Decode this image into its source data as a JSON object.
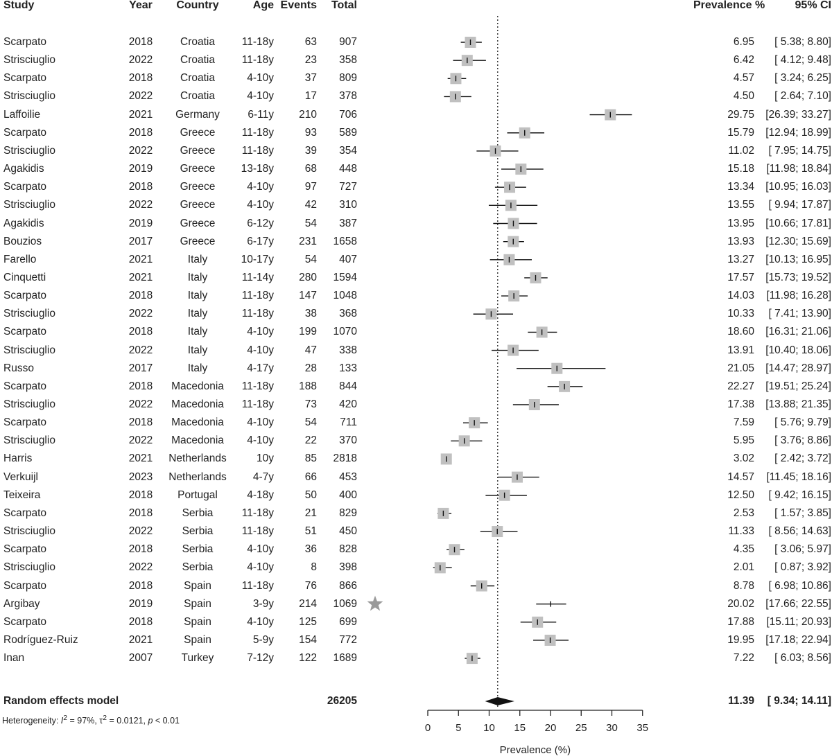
{
  "columns": {
    "study": "Study",
    "year": "Year",
    "country": "Country",
    "age": "Age",
    "events": "Events",
    "total": "Total",
    "prevalence": "Prevalence %",
    "ci": "95% CI"
  },
  "chart_data": {
    "type": "forest",
    "xlabel": "Prevalence (%)",
    "xlim": [
      0,
      35
    ],
    "ticks": [
      0,
      5,
      10,
      15,
      20,
      25,
      30,
      35
    ],
    "reference_line": 11.39,
    "rows": [
      {
        "study": "Scarpato",
        "year": "2018",
        "country": "Croatia",
        "age": "11-18y",
        "events": "63",
        "total": "907",
        "prev": 6.95,
        "lo": 5.38,
        "hi": 8.8,
        "prev_text": "6.95",
        "ci_text": "[ 5.38;  8.80]"
      },
      {
        "study": "Strisciuglio",
        "year": "2022",
        "country": "Croatia",
        "age": "11-18y",
        "events": "23",
        "total": "358",
        "prev": 6.42,
        "lo": 4.12,
        "hi": 9.48,
        "prev_text": "6.42",
        "ci_text": "[ 4.12;  9.48]"
      },
      {
        "study": "Scarpato",
        "year": "2018",
        "country": "Croatia",
        "age": "4-10y",
        "events": "37",
        "total": "809",
        "prev": 4.57,
        "lo": 3.24,
        "hi": 6.25,
        "prev_text": "4.57",
        "ci_text": "[ 3.24;  6.25]"
      },
      {
        "study": "Strisciuglio",
        "year": "2022",
        "country": "Croatia",
        "age": "4-10y",
        "events": "17",
        "total": "378",
        "prev": 4.5,
        "lo": 2.64,
        "hi": 7.1,
        "prev_text": "4.50",
        "ci_text": "[ 2.64;  7.10]"
      },
      {
        "study": "Laffoilie",
        "year": "2021",
        "country": "Germany",
        "age": "6-11y",
        "events": "210",
        "total": "706",
        "prev": 29.75,
        "lo": 26.39,
        "hi": 33.27,
        "prev_text": "29.75",
        "ci_text": "[26.39; 33.27]"
      },
      {
        "study": "Scarpato",
        "year": "2018",
        "country": "Greece",
        "age": "11-18y",
        "events": "93",
        "total": "589",
        "prev": 15.79,
        "lo": 12.94,
        "hi": 18.99,
        "prev_text": "15.79",
        "ci_text": "[12.94; 18.99]"
      },
      {
        "study": "Strisciuglio",
        "year": "2022",
        "country": "Greece",
        "age": "11-18y",
        "events": "39",
        "total": "354",
        "prev": 11.02,
        "lo": 7.95,
        "hi": 14.75,
        "prev_text": "11.02",
        "ci_text": "[ 7.95; 14.75]"
      },
      {
        "study": "Agakidis",
        "year": "2019",
        "country": "Greece",
        "age": "13-18y",
        "events": "68",
        "total": "448",
        "prev": 15.18,
        "lo": 11.98,
        "hi": 18.84,
        "prev_text": "15.18",
        "ci_text": "[11.98; 18.84]"
      },
      {
        "study": "Scarpato",
        "year": "2018",
        "country": "Greece",
        "age": "4-10y",
        "events": "97",
        "total": "727",
        "prev": 13.34,
        "lo": 10.95,
        "hi": 16.03,
        "prev_text": "13.34",
        "ci_text": "[10.95; 16.03]"
      },
      {
        "study": "Strisciuglio",
        "year": "2022",
        "country": "Greece",
        "age": "4-10y",
        "events": "42",
        "total": "310",
        "prev": 13.55,
        "lo": 9.94,
        "hi": 17.87,
        "prev_text": "13.55",
        "ci_text": "[ 9.94; 17.87]"
      },
      {
        "study": "Agakidis",
        "year": "2019",
        "country": "Greece",
        "age": "6-12y",
        "events": "54",
        "total": "387",
        "prev": 13.95,
        "lo": 10.66,
        "hi": 17.81,
        "prev_text": "13.95",
        "ci_text": "[10.66; 17.81]"
      },
      {
        "study": "Bouzios",
        "year": "2017",
        "country": "Greece",
        "age": "6-17y",
        "events": "231",
        "total": "1658",
        "prev": 13.93,
        "lo": 12.3,
        "hi": 15.69,
        "prev_text": "13.93",
        "ci_text": "[12.30; 15.69]"
      },
      {
        "study": "Farello",
        "year": "2021",
        "country": "Italy",
        "age": "10-17y",
        "events": "54",
        "total": "407",
        "prev": 13.27,
        "lo": 10.13,
        "hi": 16.95,
        "prev_text": "13.27",
        "ci_text": "[10.13; 16.95]"
      },
      {
        "study": "Cinquetti",
        "year": "2021",
        "country": "Italy",
        "age": "11-14y",
        "events": "280",
        "total": "1594",
        "prev": 17.57,
        "lo": 15.73,
        "hi": 19.52,
        "prev_text": "17.57",
        "ci_text": "[15.73; 19.52]"
      },
      {
        "study": "Scarpato",
        "year": "2018",
        "country": "Italy",
        "age": "11-18y",
        "events": "147",
        "total": "1048",
        "prev": 14.03,
        "lo": 11.98,
        "hi": 16.28,
        "prev_text": "14.03",
        "ci_text": "[11.98; 16.28]"
      },
      {
        "study": "Strisciuglio",
        "year": "2022",
        "country": "Italy",
        "age": "11-18y",
        "events": "38",
        "total": "368",
        "prev": 10.33,
        "lo": 7.41,
        "hi": 13.9,
        "prev_text": "10.33",
        "ci_text": "[ 7.41; 13.90]"
      },
      {
        "study": "Scarpato",
        "year": "2018",
        "country": "Italy",
        "age": "4-10y",
        "events": "199",
        "total": "1070",
        "prev": 18.6,
        "lo": 16.31,
        "hi": 21.06,
        "prev_text": "18.60",
        "ci_text": "[16.31; 21.06]"
      },
      {
        "study": "Strisciuglio",
        "year": "2022",
        "country": "Italy",
        "age": "4-10y",
        "events": "47",
        "total": "338",
        "prev": 13.91,
        "lo": 10.4,
        "hi": 18.06,
        "prev_text": "13.91",
        "ci_text": "[10.40; 18.06]"
      },
      {
        "study": "Russo",
        "year": "2017",
        "country": "Italy",
        "age": "4-17y",
        "events": "28",
        "total": "133",
        "prev": 21.05,
        "lo": 14.47,
        "hi": 28.97,
        "prev_text": "21.05",
        "ci_text": "[14.47; 28.97]"
      },
      {
        "study": "Scarpato",
        "year": "2018",
        "country": "Macedonia",
        "age": "11-18y",
        "events": "188",
        "total": "844",
        "prev": 22.27,
        "lo": 19.51,
        "hi": 25.24,
        "prev_text": "22.27",
        "ci_text": "[19.51; 25.24]"
      },
      {
        "study": "Strisciuglio",
        "year": "2022",
        "country": "Macedonia",
        "age": "11-18y",
        "events": "73",
        "total": "420",
        "prev": 17.38,
        "lo": 13.88,
        "hi": 21.35,
        "prev_text": "17.38",
        "ci_text": "[13.88; 21.35]"
      },
      {
        "study": "Scarpato",
        "year": "2018",
        "country": "Macedonia",
        "age": "4-10y",
        "events": "54",
        "total": "711",
        "prev": 7.59,
        "lo": 5.76,
        "hi": 9.79,
        "prev_text": "7.59",
        "ci_text": "[ 5.76;  9.79]"
      },
      {
        "study": "Strisciuglio",
        "year": "2022",
        "country": "Macedonia",
        "age": "4-10y",
        "events": "22",
        "total": "370",
        "prev": 5.95,
        "lo": 3.76,
        "hi": 8.86,
        "prev_text": "5.95",
        "ci_text": "[ 3.76;  8.86]"
      },
      {
        "study": "Harris",
        "year": "2021",
        "country": "Netherlands",
        "age": "10y",
        "events": "85",
        "total": "2818",
        "prev": 3.02,
        "lo": 2.42,
        "hi": 3.72,
        "prev_text": "3.02",
        "ci_text": "[ 2.42;  3.72]"
      },
      {
        "study": "Verkuijl",
        "year": "2023",
        "country": "Netherlands",
        "age": "4-7y",
        "events": "66",
        "total": "453",
        "prev": 14.57,
        "lo": 11.45,
        "hi": 18.16,
        "prev_text": "14.57",
        "ci_text": "[11.45; 18.16]"
      },
      {
        "study": "Teixeira",
        "year": "2018",
        "country": "Portugal",
        "age": "4-18y",
        "events": "50",
        "total": "400",
        "prev": 12.5,
        "lo": 9.42,
        "hi": 16.15,
        "prev_text": "12.50",
        "ci_text": "[ 9.42; 16.15]"
      },
      {
        "study": "Scarpato",
        "year": "2018",
        "country": "Serbia",
        "age": "11-18y",
        "events": "21",
        "total": "829",
        "prev": 2.53,
        "lo": 1.57,
        "hi": 3.85,
        "prev_text": "2.53",
        "ci_text": "[ 1.57;  3.85]"
      },
      {
        "study": "Strisciuglio",
        "year": "2022",
        "country": "Serbia",
        "age": "11-18y",
        "events": "51",
        "total": "450",
        "prev": 11.33,
        "lo": 8.56,
        "hi": 14.63,
        "prev_text": "11.33",
        "ci_text": "[ 8.56; 14.63]"
      },
      {
        "study": "Scarpato",
        "year": "2018",
        "country": "Serbia",
        "age": "4-10y",
        "events": "36",
        "total": "828",
        "prev": 4.35,
        "lo": 3.06,
        "hi": 5.97,
        "prev_text": "4.35",
        "ci_text": "[ 3.06;  5.97]"
      },
      {
        "study": "Strisciuglio",
        "year": "2022",
        "country": "Serbia",
        "age": "4-10y",
        "events": "8",
        "total": "398",
        "prev": 2.01,
        "lo": 0.87,
        "hi": 3.92,
        "prev_text": "2.01",
        "ci_text": "[ 0.87;  3.92]"
      },
      {
        "study": "Scarpato",
        "year": "2018",
        "country": "Spain",
        "age": "11-18y",
        "events": "76",
        "total": "866",
        "prev": 8.78,
        "lo": 6.98,
        "hi": 10.86,
        "prev_text": "8.78",
        "ci_text": "[ 6.98; 10.86]"
      },
      {
        "study": "Argibay",
        "year": "2019",
        "country": "Spain",
        "age": "3-9y",
        "events": "214",
        "total": "1069",
        "prev": 20.02,
        "lo": 17.66,
        "hi": 22.55,
        "prev_text": "20.02",
        "ci_text": "[17.66; 22.55]",
        "no_box": true,
        "star": true
      },
      {
        "study": "Scarpato",
        "year": "2018",
        "country": "Spain",
        "age": "4-10y",
        "events": "125",
        "total": "699",
        "prev": 17.88,
        "lo": 15.11,
        "hi": 20.93,
        "prev_text": "17.88",
        "ci_text": "[15.11; 20.93]"
      },
      {
        "study": "Rodríguez-Ruiz",
        "year": "2021",
        "country": "Spain",
        "age": "5-9y",
        "events": "154",
        "total": "772",
        "prev": 19.95,
        "lo": 17.18,
        "hi": 22.94,
        "prev_text": "19.95",
        "ci_text": "[17.18; 22.94]"
      },
      {
        "study": "Inan",
        "year": "2007",
        "country": "Turkey",
        "age": "7-12y",
        "events": "122",
        "total": "1689",
        "prev": 7.22,
        "lo": 6.03,
        "hi": 8.56,
        "prev_text": "7.22",
        "ci_text": "[ 6.03;  8.56]"
      }
    ],
    "summary": {
      "label": "Random effects model",
      "total": "26205",
      "prev": 11.39,
      "lo": 9.34,
      "hi": 14.11,
      "prev_text": "11.39",
      "ci_text": "[ 9.34; 14.11]"
    },
    "heterogeneity": {
      "prefix": "Heterogeneity: ",
      "i2_symbol": "I",
      "i2_value": " = 97%, τ",
      "tau_value": " = 0.0121, ",
      "p_symbol": "p",
      "p_value": " < 0.01"
    }
  }
}
